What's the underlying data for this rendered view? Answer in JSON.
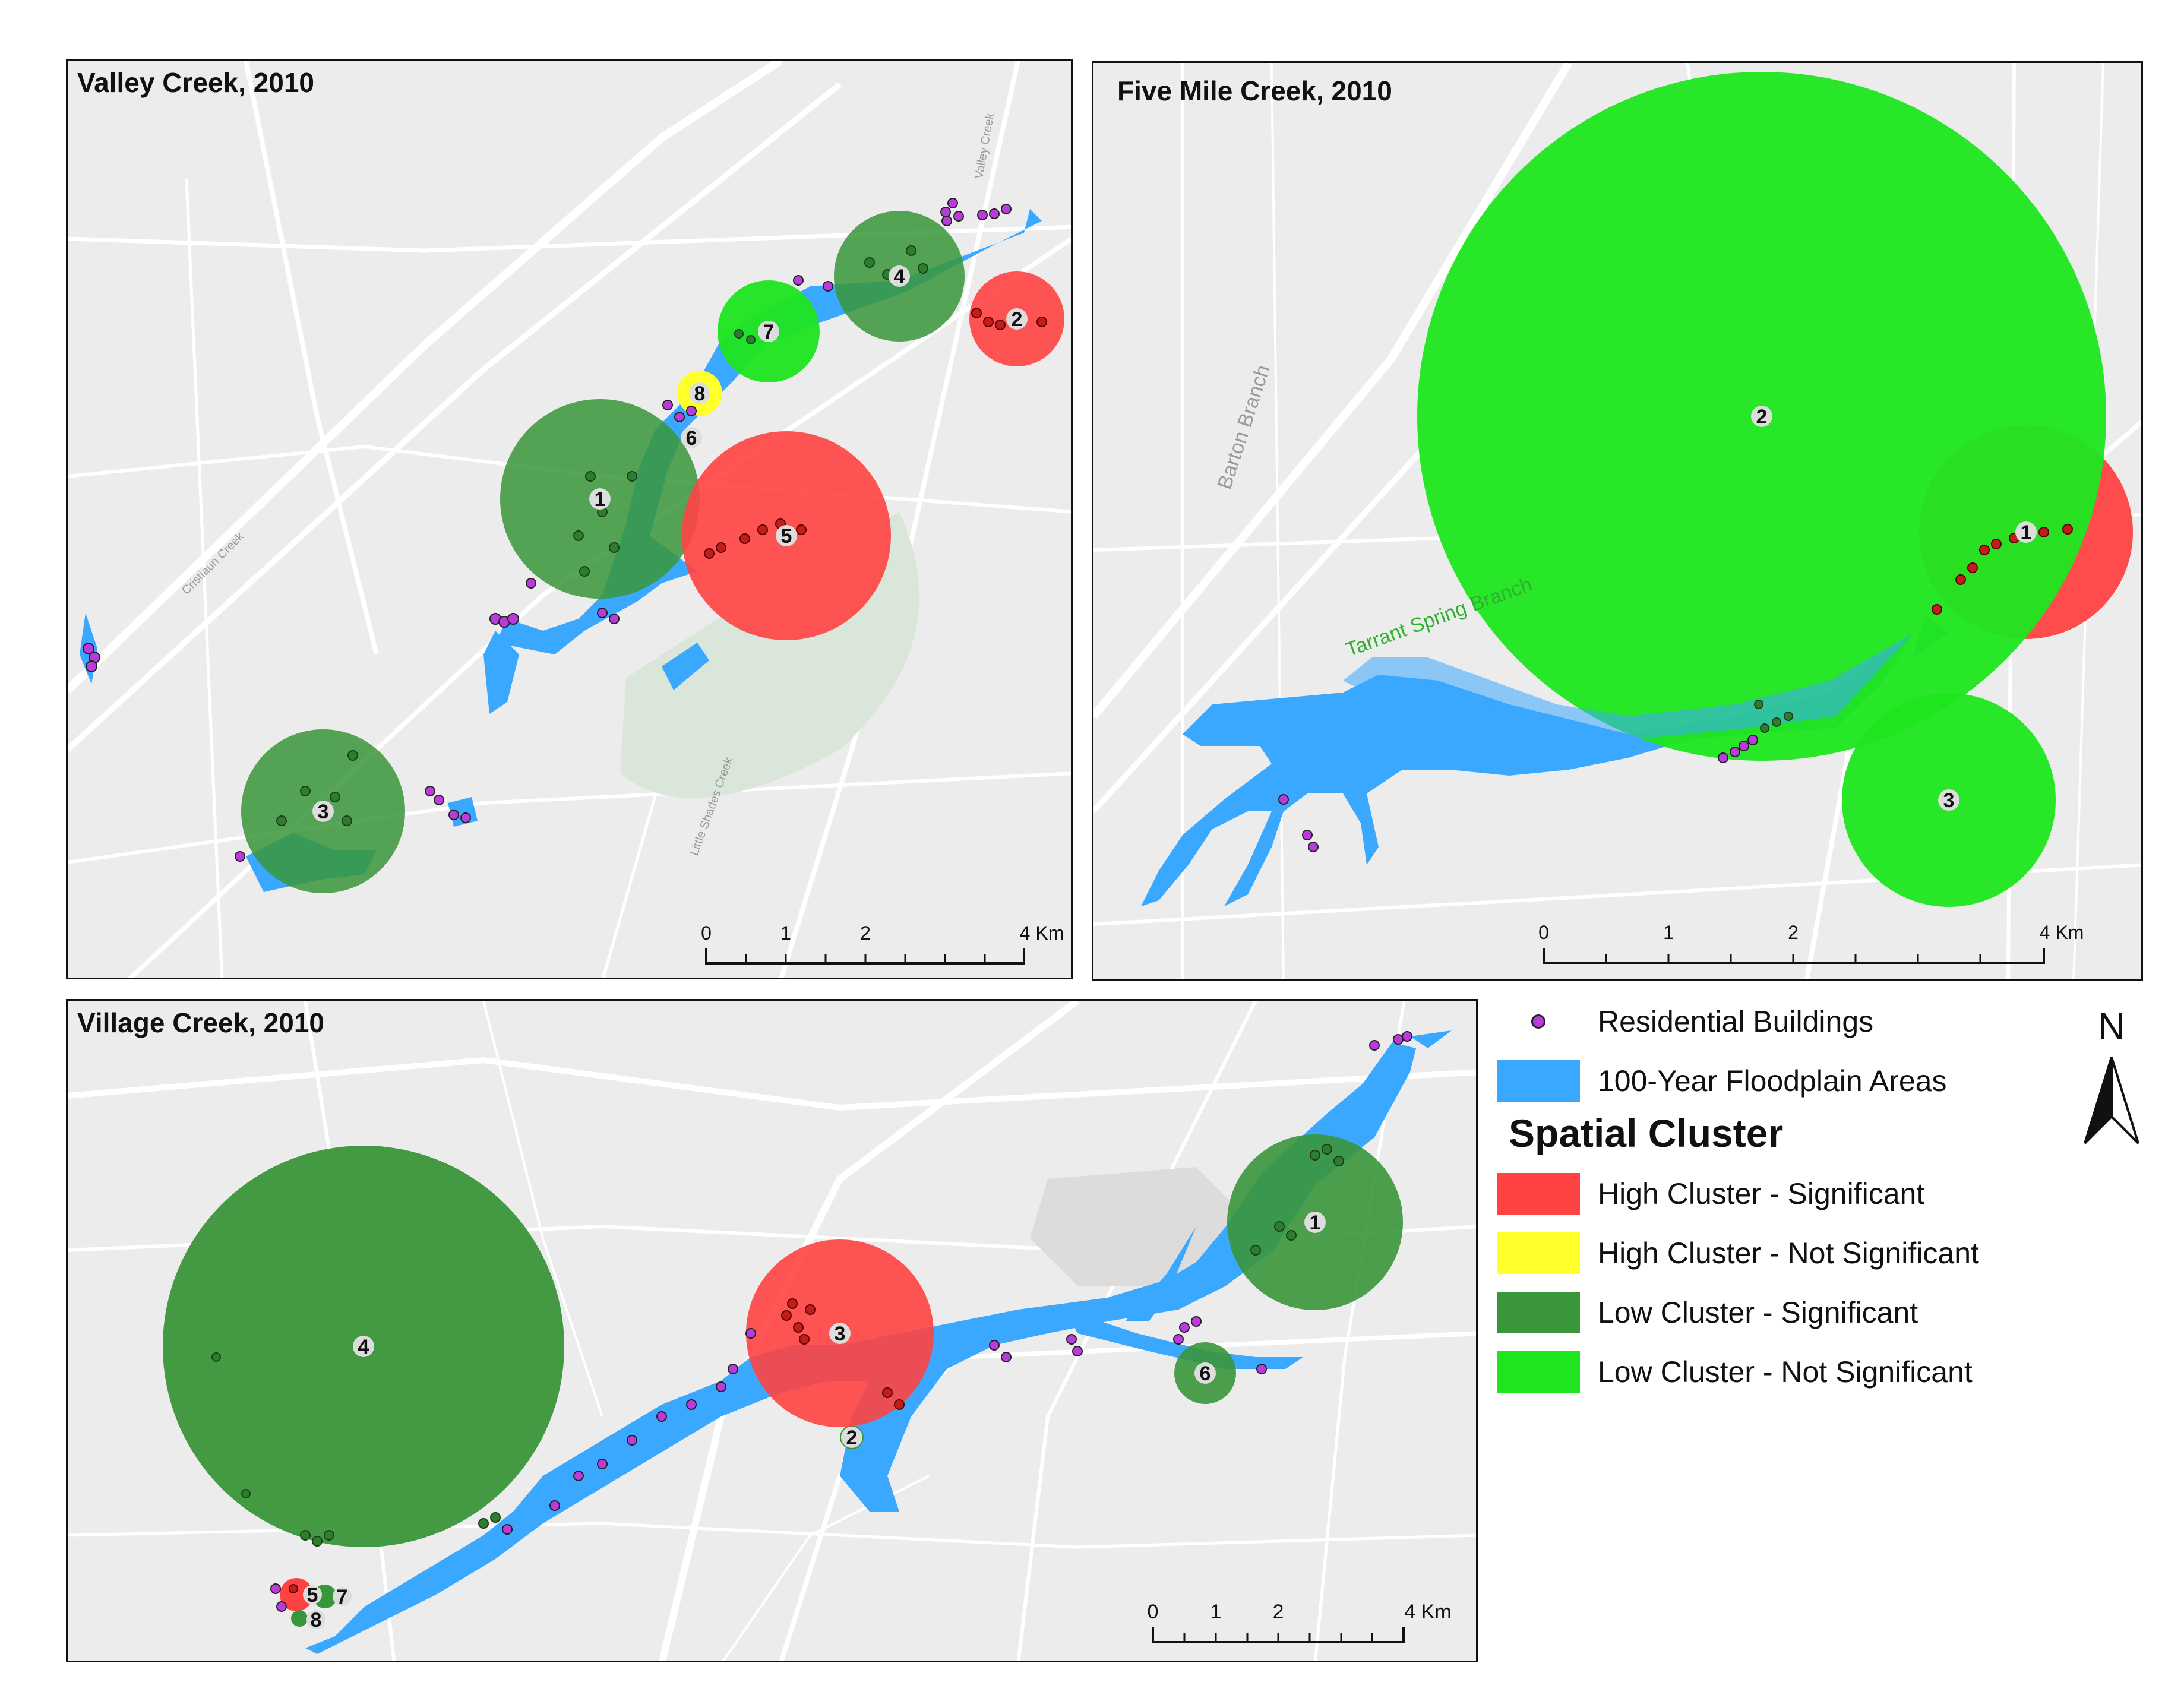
{
  "panels": {
    "valley": {
      "title": "Valley Creek, 2010"
    },
    "fivemile": {
      "title": "Five Mile Creek, 2010"
    },
    "village": {
      "title": "Village Creek, 2010"
    }
  },
  "map_labels": {
    "valley": [
      "Valley Creek",
      "Cristiaun Creek",
      "Little Shades Creek"
    ],
    "fivemile": [
      "Barton Branch",
      "Tarrant Spring Branch"
    ]
  },
  "scale_bars": {
    "valley": {
      "ticks": [
        "0",
        "1",
        "2",
        "4 Km"
      ]
    },
    "fivemile": {
      "ticks": [
        "0",
        "1",
        "2",
        "4 Km"
      ]
    },
    "village": {
      "ticks": [
        "0",
        "1",
        "2",
        "4 Km"
      ]
    }
  },
  "legend": {
    "residential_label": "Residential Buildings",
    "floodplain_label": "100-Year Floodplain Areas",
    "heading": "Spatial Cluster",
    "items": [
      {
        "label": "High Cluster - Significant",
        "color": "#ff4343"
      },
      {
        "label": "High Cluster - Not Significant",
        "color": "#ffff2a"
      },
      {
        "label": "Low Cluster - Significant",
        "color": "#3a963a"
      },
      {
        "label": "Low Cluster - Not Significant",
        "color": "#1fe51f"
      }
    ],
    "floodplain_color": "#3aa8ff",
    "residential_color": "#b93bd9"
  },
  "north_arrow": {
    "label": "N"
  },
  "clusters": {
    "valley": [
      {
        "id": "1",
        "type": "Low Cluster - Significant"
      },
      {
        "id": "2",
        "type": "High Cluster - Significant"
      },
      {
        "id": "3",
        "type": "Low Cluster - Significant"
      },
      {
        "id": "4",
        "type": "Low Cluster - Significant"
      },
      {
        "id": "5",
        "type": "High Cluster - Significant"
      },
      {
        "id": "6",
        "type": "Low Cluster - Significant"
      },
      {
        "id": "7",
        "type": "Low Cluster - Not Significant"
      },
      {
        "id": "8",
        "type": "High Cluster - Not Significant"
      }
    ],
    "fivemile": [
      {
        "id": "1",
        "type": "High Cluster - Significant"
      },
      {
        "id": "2",
        "type": "Low Cluster - Not Significant"
      },
      {
        "id": "3",
        "type": "Low Cluster - Not Significant"
      }
    ],
    "village": [
      {
        "id": "1",
        "type": "Low Cluster - Significant"
      },
      {
        "id": "2",
        "type": "Low Cluster - Significant"
      },
      {
        "id": "3",
        "type": "High Cluster - Significant"
      },
      {
        "id": "4",
        "type": "Low Cluster - Significant"
      },
      {
        "id": "5",
        "type": "High Cluster - Significant"
      },
      {
        "id": "6",
        "type": "Low Cluster - Significant"
      },
      {
        "id": "7",
        "type": "Low Cluster - Significant"
      },
      {
        "id": "8",
        "type": "Low Cluster - Significant"
      }
    ]
  }
}
